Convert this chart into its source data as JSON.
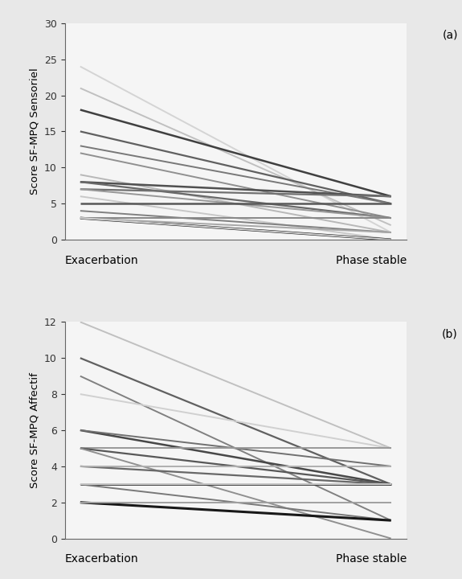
{
  "panel_a": {
    "ylabel": "Score SF-MPQ Sensoriel",
    "xlabel_left": "Exacerbation",
    "xlabel_right": "Phase stable",
    "ylim": [
      0,
      30
    ],
    "yticks": [
      0,
      5,
      10,
      15,
      20,
      25,
      30
    ],
    "label": "(a)",
    "lines": [
      {
        "start": 24,
        "end": 1,
        "color": "#d4d4d4",
        "lw": 1.4
      },
      {
        "start": 21,
        "end": 2,
        "color": "#c0c0c0",
        "lw": 1.4
      },
      {
        "start": 18,
        "end": 6,
        "color": "#404040",
        "lw": 1.8
      },
      {
        "start": 15,
        "end": 5,
        "color": "#606060",
        "lw": 1.6
      },
      {
        "start": 13,
        "end": 5,
        "color": "#787878",
        "lw": 1.4
      },
      {
        "start": 12,
        "end": 3,
        "color": "#909090",
        "lw": 1.4
      },
      {
        "start": 9,
        "end": 1,
        "color": "#b8b8b8",
        "lw": 1.4
      },
      {
        "start": 8,
        "end": 6,
        "color": "#505050",
        "lw": 1.8
      },
      {
        "start": 8,
        "end": 3,
        "color": "#686868",
        "lw": 1.6
      },
      {
        "start": 7,
        "end": 6,
        "color": "#707070",
        "lw": 1.6
      },
      {
        "start": 7,
        "end": 3,
        "color": "#989898",
        "lw": 1.4
      },
      {
        "start": 6,
        "end": 0,
        "color": "#c8c8c8",
        "lw": 1.4
      },
      {
        "start": 5,
        "end": 5,
        "color": "#585858",
        "lw": 1.8
      },
      {
        "start": 4,
        "end": 1,
        "color": "#808080",
        "lw": 1.4
      },
      {
        "start": 3,
        "end": 0,
        "color": "#181818",
        "lw": 2.2
      },
      {
        "start": 3,
        "end": 3,
        "color": "#888888",
        "lw": 1.4
      },
      {
        "start": 3,
        "end": 1,
        "color": "#a8a8a8",
        "lw": 1.4
      },
      {
        "start": 3,
        "end": 0,
        "color": "#d0d0d0",
        "lw": 1.4
      }
    ]
  },
  "panel_b": {
    "ylabel": "Score SF-MPQ Affectif",
    "xlabel_left": "Exacerbation",
    "xlabel_right": "Phase stable",
    "ylim": [
      0,
      12
    ],
    "yticks": [
      0,
      2,
      4,
      6,
      8,
      10,
      12
    ],
    "label": "(b)",
    "lines": [
      {
        "start": 12,
        "end": 5,
        "color": "#c0c0c0",
        "lw": 1.4
      },
      {
        "start": 10,
        "end": 3,
        "color": "#606060",
        "lw": 1.6
      },
      {
        "start": 9,
        "end": 1,
        "color": "#808080",
        "lw": 1.4
      },
      {
        "start": 8,
        "end": 5,
        "color": "#d0d0d0",
        "lw": 1.4
      },
      {
        "start": 6,
        "end": 3,
        "color": "#484848",
        "lw": 1.8
      },
      {
        "start": 6,
        "end": 4,
        "color": "#707070",
        "lw": 1.4
      },
      {
        "start": 5,
        "end": 5,
        "color": "#989898",
        "lw": 1.4
      },
      {
        "start": 5,
        "end": 3,
        "color": "#585858",
        "lw": 1.6
      },
      {
        "start": 5,
        "end": 0,
        "color": "#909090",
        "lw": 1.4
      },
      {
        "start": 4,
        "end": 3,
        "color": "#686868",
        "lw": 1.6
      },
      {
        "start": 4,
        "end": 4,
        "color": "#b0b0b0",
        "lw": 1.4
      },
      {
        "start": 3,
        "end": 3,
        "color": "#383838",
        "lw": 2.0
      },
      {
        "start": 3,
        "end": 1,
        "color": "#787878",
        "lw": 1.4
      },
      {
        "start": 2,
        "end": 1,
        "color": "#181818",
        "lw": 2.2
      },
      {
        "start": 2,
        "end": 2,
        "color": "#a0a0a0",
        "lw": 1.4
      },
      {
        "start": 3,
        "end": 3,
        "color": "#c8c8c8",
        "lw": 1.4
      }
    ]
  },
  "x_positions": [
    0,
    1
  ],
  "figure_bg": "#e8e8e8",
  "panel_bg": "#f0f0f0",
  "plot_bg": "#f5f5f5"
}
